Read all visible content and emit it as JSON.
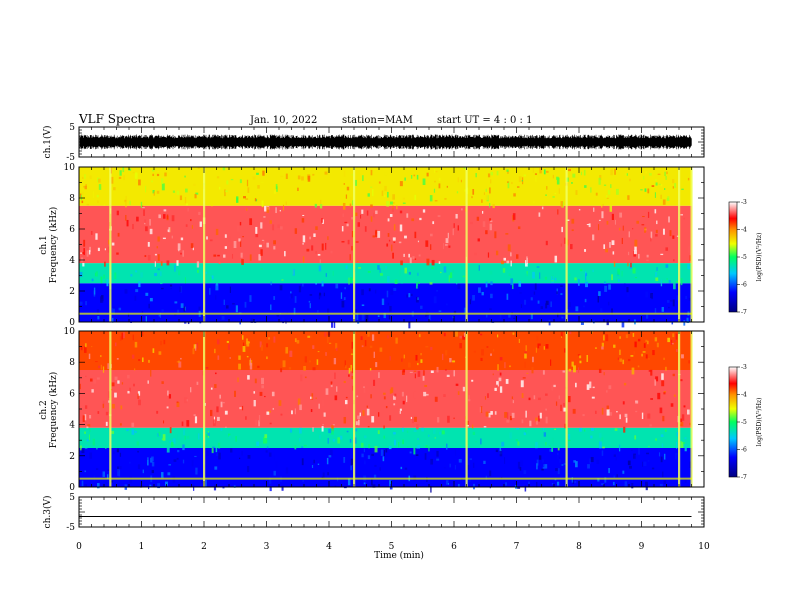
{
  "header": {
    "title": "VLF Spectra",
    "date": "Jan. 10, 2022",
    "station": "station=MAM",
    "start": "start UT =  4 : 0  : 1"
  },
  "chart_data": [
    {
      "type": "line",
      "panel": "ch1-waveform",
      "ylabel": "ch.1(V)",
      "ylim": [
        -5,
        5
      ],
      "yticks": [
        "5",
        "-5"
      ],
      "xlim": [
        0,
        10
      ],
      "note": "dense noisy waveform spanning about -2.5 to 2.5 V over 0-9.8 min"
    },
    {
      "type": "heatmap",
      "panel": "ch1-spectrogram",
      "ylabel": "ch.1\nFrequency (kHz)",
      "ylim": [
        0,
        10
      ],
      "yticks": [
        "0",
        "2",
        "4",
        "6",
        "8",
        "10"
      ],
      "xlim": [
        0,
        10
      ],
      "colorbar": {
        "label": "log(PSD)(V²/Hz)",
        "range": [
          -7,
          -3
        ],
        "ticks": [
          "-3",
          "-4",
          "-5",
          "-6",
          "-7"
        ]
      },
      "bands": [
        {
          "from_khz": 0,
          "to_khz": 2.5,
          "log_psd": -6.3
        },
        {
          "from_khz": 2.5,
          "to_khz": 3.8,
          "log_psd": -5.3
        },
        {
          "from_khz": 3.8,
          "to_khz": 7.5,
          "log_psd": -3.4
        },
        {
          "from_khz": 7.5,
          "to_khz": 10,
          "log_psd": -4.4
        }
      ],
      "spikes_min": [
        0.5,
        2.0,
        4.4,
        6.2,
        7.8,
        9.6,
        9.8
      ]
    },
    {
      "type": "heatmap",
      "panel": "ch2-spectrogram",
      "ylabel": "ch.2\nFrequency (kHz)",
      "ylim": [
        0,
        10
      ],
      "yticks": [
        "0",
        "2",
        "4",
        "6",
        "8",
        "10"
      ],
      "xlim": [
        0,
        10
      ],
      "colorbar": {
        "label": "log(PSD)(V²/Hz)",
        "range": [
          -7,
          -3
        ],
        "ticks": [
          "-3",
          "-4",
          "-5",
          "-6",
          "-7"
        ]
      },
      "bands": [
        {
          "from_khz": 0,
          "to_khz": 2.5,
          "log_psd": -6.3
        },
        {
          "from_khz": 2.5,
          "to_khz": 3.8,
          "log_psd": -5.3
        },
        {
          "from_khz": 3.8,
          "to_khz": 7.5,
          "log_psd": -3.4
        },
        {
          "from_khz": 7.5,
          "to_khz": 10,
          "log_psd": -3.8
        }
      ],
      "spikes_min": [
        0.5,
        2.0,
        4.4,
        6.2,
        7.8,
        9.6,
        9.8
      ]
    },
    {
      "type": "line",
      "panel": "ch3-waveform",
      "ylabel": "ch.3(V)",
      "ylim": [
        -5,
        5
      ],
      "yticks": [
        "5",
        "-5"
      ],
      "xlim": [
        0,
        10
      ],
      "xlabel": "Time (min)",
      "xticks": [
        "0",
        "1",
        "2",
        "3",
        "4",
        "5",
        "6",
        "7",
        "8",
        "9",
        "10"
      ],
      "values_note": "flat line",
      "value": -1.5
    }
  ],
  "colors": {
    "frame": "#000000",
    "background": "#ffffff"
  }
}
